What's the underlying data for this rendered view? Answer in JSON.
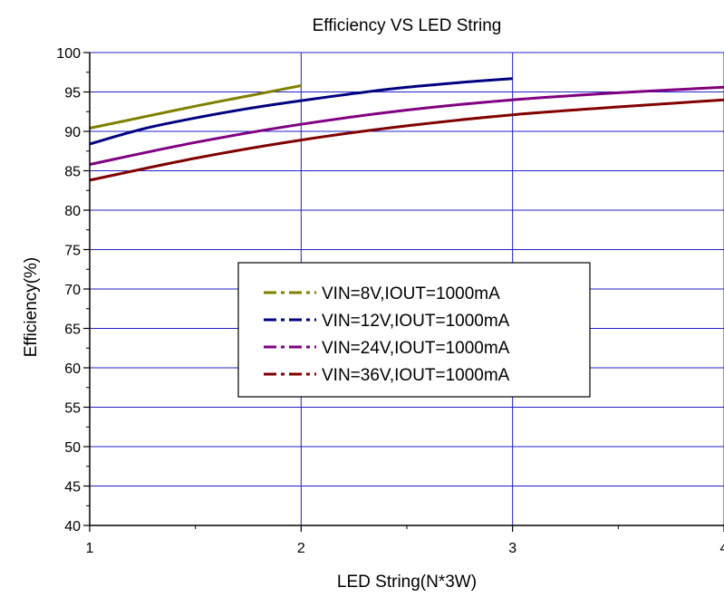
{
  "chart_data": {
    "type": "line",
    "title": "Efficiency VS LED String",
    "xlabel": "LED String(N*3W)",
    "ylabel": "Efficiency(%)",
    "xlim": [
      1,
      4
    ],
    "ylim": [
      40,
      100
    ],
    "x_ticks": [
      "1",
      "2",
      "3",
      "4"
    ],
    "y_ticks": [
      "40",
      "45",
      "50",
      "55",
      "60",
      "65",
      "70",
      "75",
      "80",
      "85",
      "90",
      "95",
      "100"
    ],
    "grid": true,
    "legend_position": "center",
    "series": [
      {
        "name": "VIN=8V,IOUT=1000mA",
        "color": "#808000",
        "x": [
          1,
          1.25,
          1.5,
          1.75,
          2
        ],
        "y": [
          90.4,
          91.8,
          93.2,
          94.5,
          95.8
        ]
      },
      {
        "name": "VIN=12V,IOUT=1000mA",
        "color": "#000080",
        "x": [
          1,
          1.25,
          1.5,
          1.75,
          2,
          2.25,
          2.5,
          2.75,
          3
        ],
        "y": [
          88.4,
          90.3,
          91.7,
          92.9,
          93.9,
          94.8,
          95.6,
          96.2,
          96.7
        ]
      },
      {
        "name": "VIN=24V,IOUT=1000mA",
        "color": "#800080",
        "x": [
          1,
          1.5,
          2,
          2.5,
          3,
          3.5,
          4
        ],
        "y": [
          85.8,
          88.6,
          90.9,
          92.7,
          94.0,
          94.9,
          95.6
        ]
      },
      {
        "name": "VIN=36V,IOUT=1000mA",
        "color": "#800000",
        "x": [
          1,
          1.5,
          2,
          2.5,
          3,
          3.5,
          4
        ],
        "y": [
          83.8,
          86.6,
          88.9,
          90.7,
          92.1,
          93.1,
          94.0
        ]
      }
    ]
  }
}
